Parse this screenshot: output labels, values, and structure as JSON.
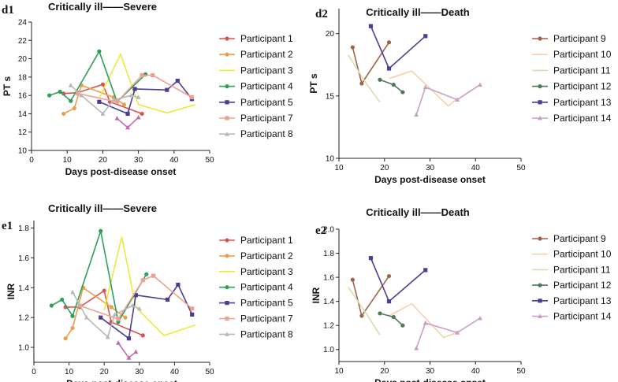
{
  "chart_data": [
    {
      "type": "line",
      "panel_label": "d1",
      "title": "Critically ill——Severe",
      "xlabel": "Days post-disease onset",
      "ylabel": "PT s",
      "xlim": [
        0,
        50
      ],
      "ylim": [
        10,
        24
      ],
      "xticks": [
        "0",
        "10",
        "20",
        "30",
        "40",
        "50"
      ],
      "yticks": [
        "10",
        "12",
        "14",
        "16",
        "18",
        "20",
        "22",
        "24"
      ],
      "legend_position": "right",
      "series": [
        {
          "name": "Participant 1",
          "color": "#d9534f",
          "marker": "dot",
          "x": [
            9,
            13,
            20,
            22,
            31
          ],
          "y": [
            16.2,
            16.3,
            17.2,
            15.3,
            14.0
          ]
        },
        {
          "name": "Participant 2",
          "color": "#e8a04a",
          "marker": "dot",
          "x": [
            9,
            12,
            14,
            23,
            26
          ],
          "y": [
            14.0,
            14.6,
            17.1,
            15.8,
            15.0
          ]
        },
        {
          "name": "Participant 3",
          "color": "#ecea3a",
          "marker": "none",
          "x": [
            19,
            25,
            30,
            38,
            46
          ],
          "y": [
            15.7,
            20.5,
            15.0,
            14.1,
            15.0
          ]
        },
        {
          "name": "Participant 4",
          "color": "#2ca05a",
          "marker": "dot",
          "x": [
            5,
            8,
            11,
            19,
            24,
            32
          ],
          "y": [
            16.0,
            16.4,
            15.4,
            20.8,
            15.3,
            18.3
          ]
        },
        {
          "name": "Participant 5",
          "color": "#4b3f93",
          "marker": "square",
          "x": [
            19,
            27,
            29,
            38,
            41,
            45
          ],
          "y": [
            15.3,
            14.0,
            16.7,
            16.6,
            17.6,
            15.6
          ]
        },
        {
          "name": "Participant 7",
          "color": "#f0a090",
          "marker": "square",
          "x": [
            13,
            24,
            31,
            34,
            45
          ],
          "y": [
            16.2,
            15.3,
            18.2,
            18.2,
            15.8
          ]
        },
        {
          "name": "Participant 8",
          "color": "#b8b8b8",
          "marker": "triangle",
          "x": [
            11,
            14,
            20,
            23,
            28,
            30
          ],
          "y": [
            17.1,
            16.0,
            14.0,
            15.5,
            16.0,
            15.8
          ]
        },
        {
          "name": "",
          "color": "#c26ab0",
          "marker": "triangle",
          "x": [
            24,
            27,
            30
          ],
          "y": [
            13.5,
            12.5,
            13.6
          ]
        }
      ]
    },
    {
      "type": "line",
      "panel_label": "d2",
      "title": "Critically ill——Death",
      "xlabel": "Days post-disease onset",
      "ylabel": "PT s",
      "xlim": [
        10,
        50
      ],
      "ylim": [
        10,
        22
      ],
      "xticks": [
        "10",
        "20",
        "30",
        "40",
        "50"
      ],
      "yticks": [
        "10",
        "15",
        "20"
      ],
      "legend_position": "right",
      "series": [
        {
          "name": "Participant 9",
          "color": "#a0644a",
          "marker": "dot",
          "x": [
            13,
            15,
            21
          ],
          "y": [
            18.9,
            16.0,
            19.3
          ]
        },
        {
          "name": "Participant 10",
          "color": "#f8d0a8",
          "marker": "none",
          "x": [
            21,
            26,
            34,
            36
          ],
          "y": [
            16.4,
            17.0,
            14.2,
            14.8
          ]
        },
        {
          "name": "Participant 11",
          "color": "#d8ddb0",
          "marker": "none",
          "x": [
            12,
            16,
            19
          ],
          "y": [
            18.3,
            16.0,
            14.5
          ]
        },
        {
          "name": "Participant 12",
          "color": "#4f7a5a",
          "marker": "dot",
          "x": [
            19,
            22,
            24
          ],
          "y": [
            16.3,
            15.9,
            15.3
          ]
        },
        {
          "name": "Participant 13",
          "color": "#4b3f93",
          "marker": "square",
          "x": [
            17,
            21,
            29
          ],
          "y": [
            20.6,
            17.2,
            19.8
          ]
        },
        {
          "name": "Participant 14",
          "color": "#c9a0c4",
          "marker": "triangle",
          "x": [
            27,
            29,
            36,
            41
          ],
          "y": [
            13.5,
            15.7,
            14.7,
            15.9
          ]
        }
      ]
    },
    {
      "type": "line",
      "panel_label": "e1",
      "title": "Critically ill——Severe",
      "xlabel": "Days post-disease onset",
      "ylabel": "INR",
      "xlim": [
        0,
        50
      ],
      "ylim": [
        0.9,
        1.85
      ],
      "xticks": [
        "0",
        "10",
        "20",
        "30",
        "40",
        "50"
      ],
      "yticks": [
        "1.0",
        "1.2",
        "1.4",
        "1.6",
        "1.8"
      ],
      "legend_position": "right",
      "series": [
        {
          "name": "Participant 1",
          "color": "#d9534f",
          "marker": "dot",
          "x": [
            9,
            13,
            20,
            22,
            31
          ],
          "y": [
            1.27,
            1.27,
            1.38,
            1.17,
            1.08
          ]
        },
        {
          "name": "Participant 2",
          "color": "#e8a04a",
          "marker": "dot",
          "x": [
            9,
            11,
            14,
            22,
            26
          ],
          "y": [
            1.06,
            1.13,
            1.4,
            1.27,
            1.2
          ]
        },
        {
          "name": "Participant 3",
          "color": "#ecea3a",
          "marker": "none",
          "x": [
            20,
            25,
            29,
            37,
            46
          ],
          "y": [
            1.25,
            1.74,
            1.27,
            1.08,
            1.15
          ]
        },
        {
          "name": "Participant 4",
          "color": "#2ca05a",
          "marker": "dot",
          "x": [
            5,
            8,
            11,
            19,
            24,
            32
          ],
          "y": [
            1.28,
            1.32,
            1.21,
            1.78,
            1.17,
            1.49
          ]
        },
        {
          "name": "Participant 5",
          "color": "#4b3f93",
          "marker": "square",
          "x": [
            19,
            27,
            29,
            38,
            41,
            45
          ],
          "y": [
            1.2,
            1.06,
            1.35,
            1.32,
            1.42,
            1.22
          ]
        },
        {
          "name": "Participant 7",
          "color": "#f0a090",
          "marker": "square",
          "x": [
            13,
            24,
            31,
            34,
            45
          ],
          "y": [
            1.28,
            1.19,
            1.45,
            1.48,
            1.26
          ]
        },
        {
          "name": "Participant 8",
          "color": "#b8b8b8",
          "marker": "triangle",
          "x": [
            11,
            15,
            21,
            23,
            28,
            30
          ],
          "y": [
            1.37,
            1.2,
            1.07,
            1.22,
            1.28,
            1.26
          ]
        },
        {
          "name": "",
          "color": "#c26ab0",
          "marker": "triangle",
          "x": [
            24,
            27,
            29
          ],
          "y": [
            1.03,
            0.93,
            0.97
          ]
        }
      ]
    },
    {
      "type": "line",
      "panel_label": "e2",
      "title": "Critically ill——Death",
      "xlabel": "Days post-disease onset",
      "ylabel": "INR",
      "xlim": [
        10,
        50
      ],
      "ylim": [
        0.9,
        2.0
      ],
      "xticks": [
        "10",
        "20",
        "30",
        "40",
        "50"
      ],
      "yticks": [
        "1.0",
        "1.2",
        "1.4",
        "1.6",
        "1.8",
        "2.0"
      ],
      "legend_position": "right",
      "series": [
        {
          "name": "Participant 9",
          "color": "#a0644a",
          "marker": "dot",
          "x": [
            13,
            15,
            21
          ],
          "y": [
            1.58,
            1.28,
            1.61
          ]
        },
        {
          "name": "Participant 10",
          "color": "#f8d0a8",
          "marker": "none",
          "x": [
            21,
            26,
            33,
            36
          ],
          "y": [
            1.28,
            1.38,
            1.1,
            1.14
          ]
        },
        {
          "name": "Participant 11",
          "color": "#d8ddb0",
          "marker": "none",
          "x": [
            12,
            16,
            19
          ],
          "y": [
            1.52,
            1.3,
            1.12
          ]
        },
        {
          "name": "Participant 12",
          "color": "#4f7a5a",
          "marker": "dot",
          "x": [
            19,
            22,
            24
          ],
          "y": [
            1.3,
            1.27,
            1.2
          ]
        },
        {
          "name": "Participant 13",
          "color": "#4b3f93",
          "marker": "square",
          "x": [
            17,
            21,
            29
          ],
          "y": [
            1.76,
            1.4,
            1.66
          ]
        },
        {
          "name": "Participant 14",
          "color": "#c9a0c4",
          "marker": "triangle",
          "x": [
            27,
            29,
            36,
            41
          ],
          "y": [
            1.01,
            1.22,
            1.14,
            1.26
          ]
        }
      ]
    }
  ]
}
